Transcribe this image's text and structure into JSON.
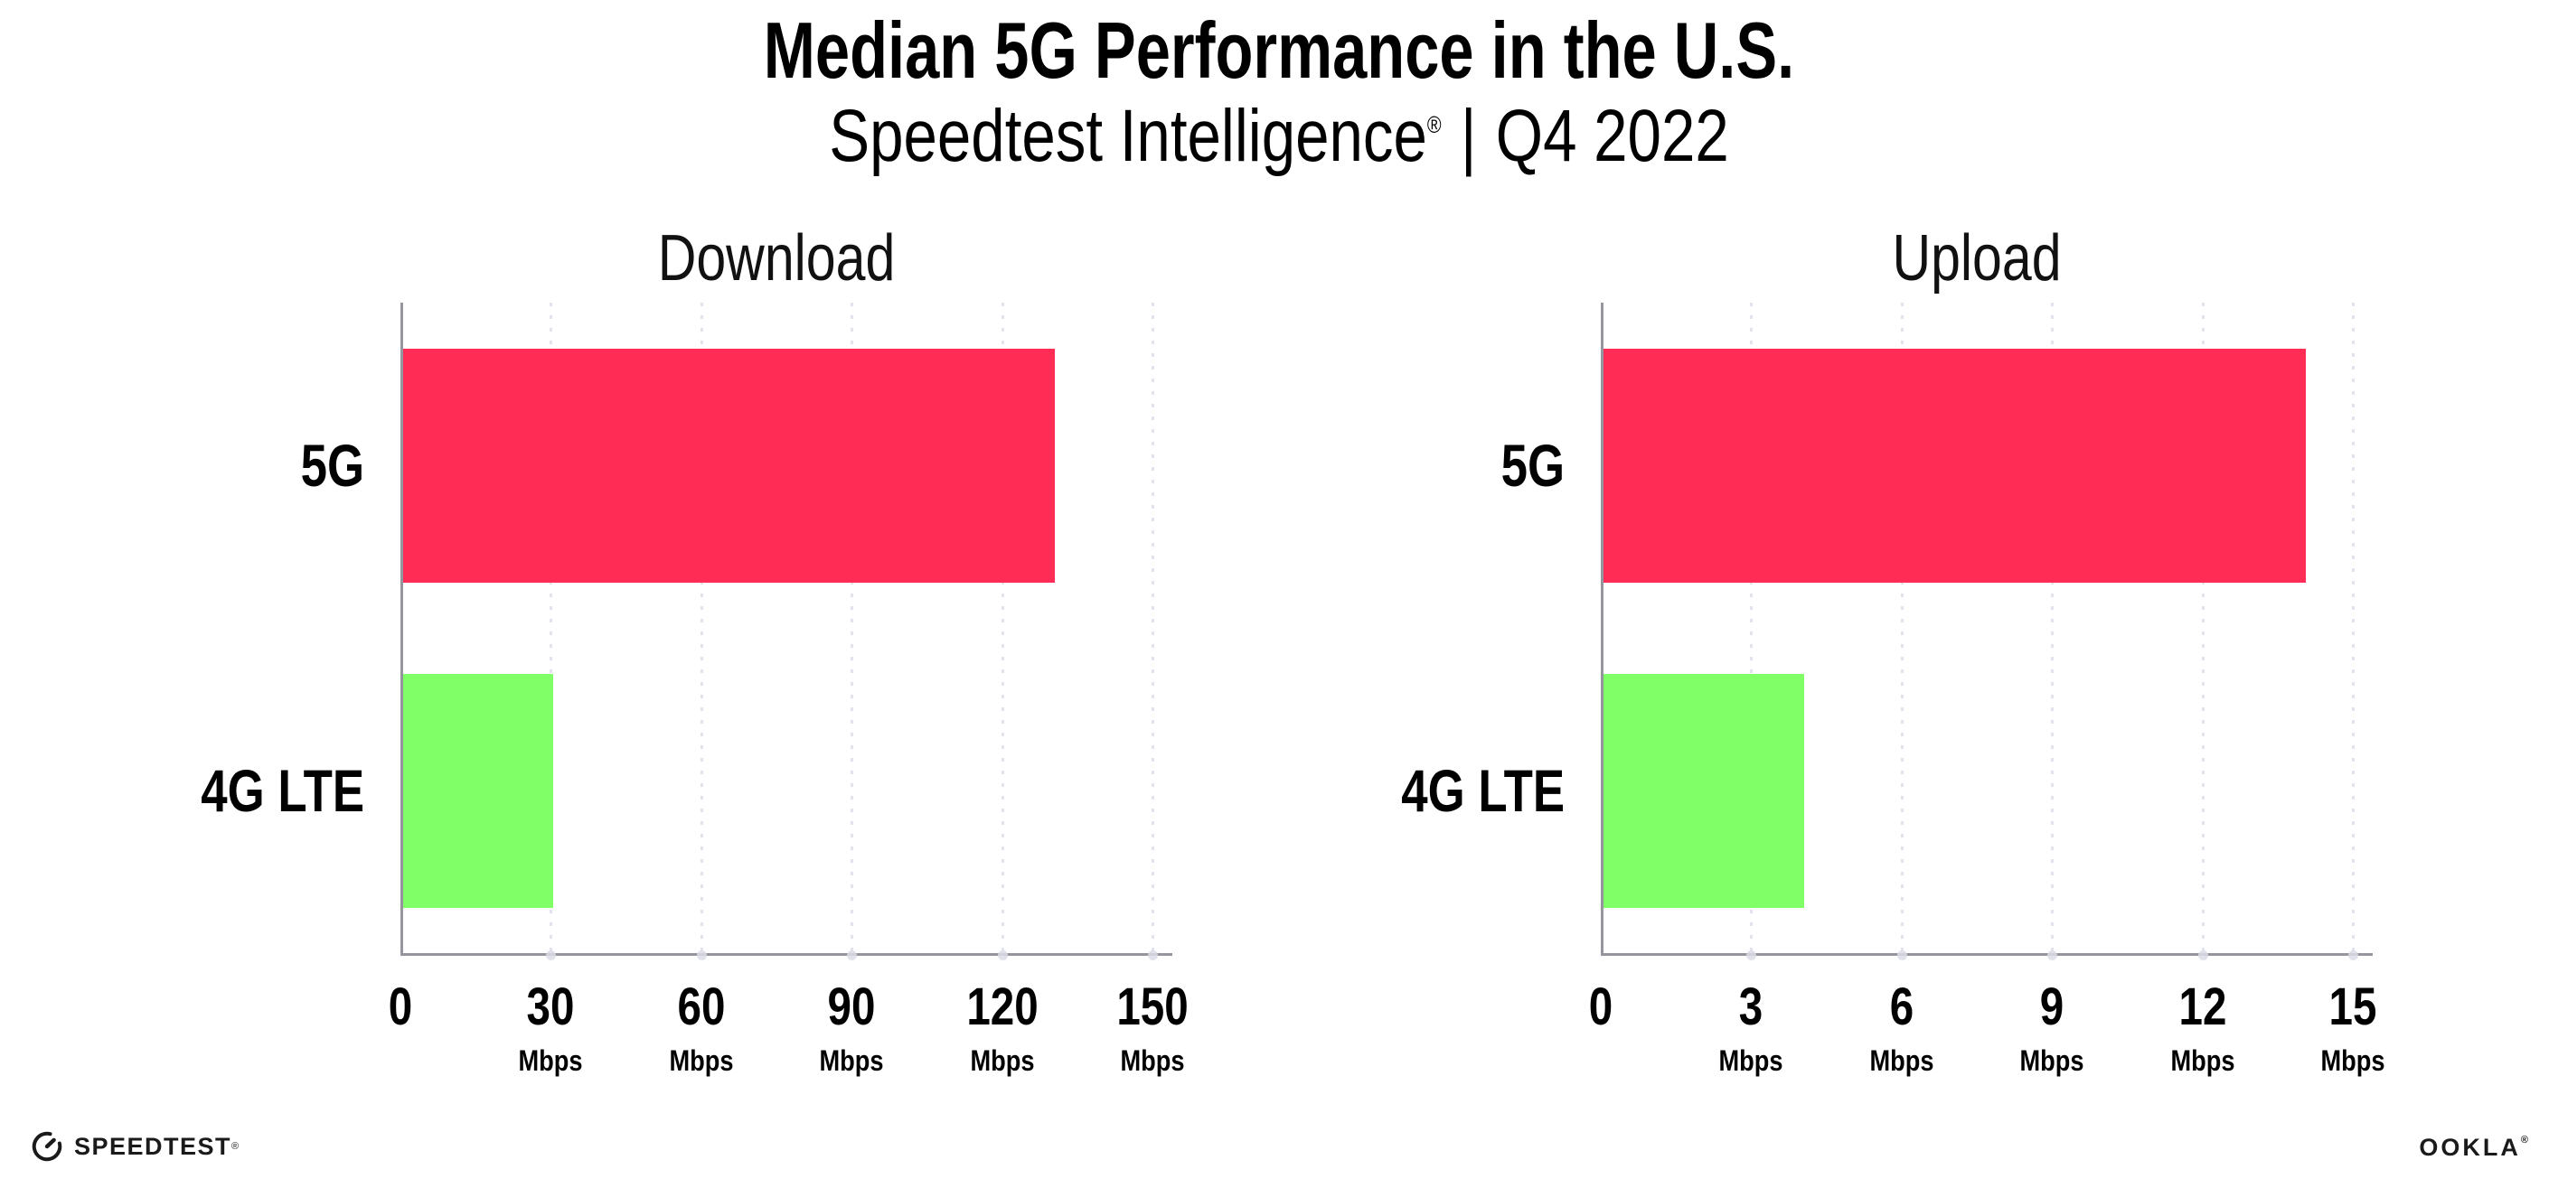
{
  "page": {
    "title": "Median 5G Performance in the U.S.",
    "subtitle_brand": "Speedtest Intelligence",
    "subtitle_mark": "®",
    "subtitle_separator": "|",
    "subtitle_period": "Q4 2022"
  },
  "chart_data": [
    {
      "type": "bar",
      "orientation": "horizontal",
      "title": "Download",
      "categories": [
        "5G",
        "4G LTE"
      ],
      "values": [
        130,
        30
      ],
      "unit": "Mbps",
      "xlim": [
        0,
        150
      ],
      "xticks": [
        0,
        30,
        60,
        90,
        120,
        150
      ],
      "bar_colors": [
        "#FF2D55",
        "#80FF66"
      ],
      "grid": "vertical-dotted",
      "legend": "none",
      "unit_under_zero_tick": false
    },
    {
      "type": "bar",
      "orientation": "horizontal",
      "title": "Upload",
      "categories": [
        "5G",
        "4G LTE"
      ],
      "values": [
        14,
        4
      ],
      "unit": "Mbps",
      "xlim": [
        0,
        15
      ],
      "xticks": [
        0,
        3,
        6,
        9,
        12,
        15
      ],
      "bar_colors": [
        "#FF2D55",
        "#80FF66"
      ],
      "grid": "vertical-dotted",
      "legend": "none",
      "unit_under_zero_tick": false
    }
  ],
  "footer": {
    "speedtest_label": "SPEEDTEST",
    "speedtest_mark": "®",
    "ookla_label": "OOKLA",
    "ookla_mark": "®"
  },
  "colors": {
    "bar_5g": "#FF2D55",
    "bar_4g_lte": "#80FF66",
    "axis": "#95959d",
    "gridline": "#e3e3ee",
    "text": "#000000"
  }
}
